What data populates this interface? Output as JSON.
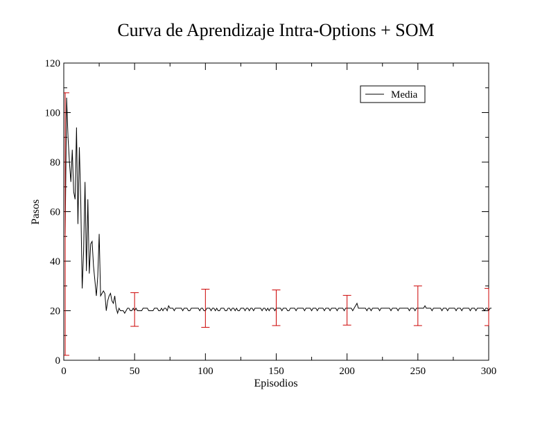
{
  "chart_data": {
    "type": "line",
    "title": "Curva de Aprendizaje Intra-Options + SOM",
    "xlabel": "Episodios",
    "ylabel": "Pasos",
    "xlim": [
      0,
      300
    ],
    "ylim": [
      0,
      120
    ],
    "xticks": [
      0,
      50,
      100,
      150,
      200,
      250,
      300
    ],
    "yticks": [
      0,
      20,
      40,
      60,
      80,
      100,
      120
    ],
    "grid": false,
    "legend_position": "top-right",
    "series": [
      {
        "name": "Media",
        "color": "#000000",
        "x_start": 1,
        "x_step": 1,
        "values": [
          51,
          106,
          90,
          80,
          72,
          85,
          68,
          65,
          94,
          55,
          86,
          64,
          29,
          44,
          72,
          36,
          65,
          35,
          47,
          48,
          38,
          32,
          26,
          34,
          51,
          26,
          27,
          28,
          27,
          20,
          24,
          26,
          27,
          24,
          23,
          26,
          21,
          19,
          21,
          20,
          20,
          20,
          19,
          20,
          21,
          21,
          20,
          20,
          21,
          20,
          21,
          20,
          20,
          20,
          20,
          21,
          21,
          21,
          21,
          20,
          20,
          20,
          20,
          21,
          21,
          21,
          20,
          20,
          21,
          20,
          21,
          21,
          20,
          22,
          21,
          21,
          21,
          20,
          21,
          21,
          21,
          21,
          21,
          20,
          21,
          21,
          21,
          20,
          20,
          21,
          21,
          21,
          21,
          21,
          21,
          20,
          21,
          21,
          20,
          20,
          21,
          21,
          21,
          20,
          21,
          21,
          20,
          21,
          20,
          20,
          21,
          21,
          21,
          20,
          20,
          21,
          21,
          20,
          21,
          21,
          20,
          21,
          20,
          20,
          21,
          21,
          21,
          20,
          21,
          21,
          20,
          21,
          21,
          20,
          21,
          21,
          21,
          21,
          21,
          20,
          21,
          21,
          20,
          21,
          20,
          21,
          21,
          21,
          20,
          21,
          21,
          21,
          21,
          20,
          21,
          21,
          21,
          20,
          20,
          21,
          21,
          21,
          21,
          20,
          21,
          21,
          21,
          21,
          21,
          20,
          21,
          21,
          21,
          21,
          20,
          21,
          21,
          21,
          20,
          21,
          21,
          21,
          21,
          20,
          21,
          21,
          21,
          20,
          21,
          21,
          21,
          21,
          20,
          21,
          21,
          21,
          21,
          20,
          21,
          21,
          21,
          21,
          21,
          20,
          21,
          22,
          23,
          21,
          21,
          21,
          21,
          21,
          21,
          20,
          21,
          21,
          20,
          21,
          21,
          21,
          21,
          21,
          20,
          21,
          21,
          21,
          21,
          21,
          21,
          21,
          20,
          21,
          21,
          21,
          21,
          20,
          21,
          21,
          21,
          21,
          21,
          21,
          21,
          20,
          21,
          21,
          21,
          20,
          21,
          21,
          21,
          21,
          21,
          21,
          22,
          21,
          21,
          21,
          21,
          20,
          21,
          21,
          21,
          21,
          21,
          21,
          20,
          21,
          21,
          21,
          20,
          21,
          21,
          21,
          21,
          21,
          20,
          21,
          21,
          21,
          20,
          21,
          21,
          21,
          21,
          21,
          20,
          21,
          21,
          21,
          20,
          21,
          21,
          21,
          21,
          21,
          20,
          21,
          21,
          20,
          21,
          21
        ]
      }
    ],
    "error_bars": {
      "color": "#cc0000",
      "points": [
        {
          "x": 1,
          "y": 55,
          "err": 53
        },
        {
          "x": 50,
          "y": 20.5,
          "err": 6.8
        },
        {
          "x": 100,
          "y": 21,
          "err": 7.7
        },
        {
          "x": 150,
          "y": 21.2,
          "err": 7.2
        },
        {
          "x": 200,
          "y": 20.2,
          "err": 6
        },
        {
          "x": 250,
          "y": 22,
          "err": 8
        },
        {
          "x": 300,
          "y": 21.5,
          "err": 7.5
        }
      ]
    }
  }
}
